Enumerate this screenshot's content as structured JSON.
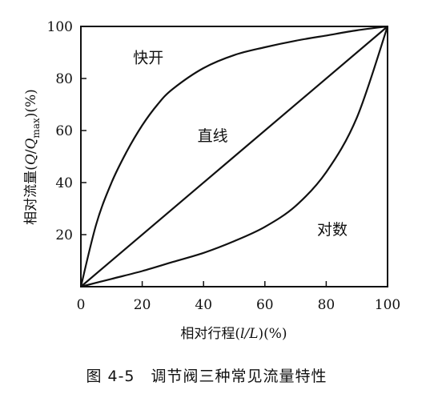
{
  "chart_data": {
    "type": "line",
    "xlabel": "相对行程(l/L)(%)",
    "ylabel": "相对流量(Q/Qmax)(%)",
    "xlim": [
      0,
      100
    ],
    "ylim": [
      0,
      100
    ],
    "x_ticks": [
      "0",
      "20",
      "40",
      "60",
      "80",
      "100"
    ],
    "y_ticks": [
      "20",
      "40",
      "60",
      "80",
      "100"
    ],
    "grid": false,
    "series": [
      {
        "name": "快开",
        "x": [
          0,
          5,
          10,
          15,
          20,
          25,
          30,
          40,
          50,
          60,
          70,
          80,
          90,
          100
        ],
        "y": [
          0,
          24,
          40,
          52,
          62,
          70,
          76,
          84,
          89,
          92,
          94.5,
          96.5,
          98.5,
          100
        ]
      },
      {
        "name": "直线",
        "x": [
          0,
          100
        ],
        "y": [
          0,
          100
        ]
      },
      {
        "name": "对数",
        "x": [
          0,
          10,
          20,
          30,
          40,
          50,
          60,
          70,
          80,
          90,
          100
        ],
        "y": [
          0,
          3,
          6,
          9.5,
          13,
          17.5,
          23,
          31,
          44,
          65,
          100
        ]
      }
    ]
  },
  "axis_label_parts": {
    "ylabel_prefix": "相对流量(",
    "ylabel_q": "Q",
    "ylabel_slash": "/",
    "ylabel_qmax": "Q",
    "ylabel_sub": "max",
    "ylabel_suffix": ")(%)",
    "xlabel_prefix": "相对行程(",
    "xlabel_var": "l/L",
    "xlabel_suffix": ")(%)"
  },
  "caption": "图 4-5　调节阀三种常见流量特性"
}
